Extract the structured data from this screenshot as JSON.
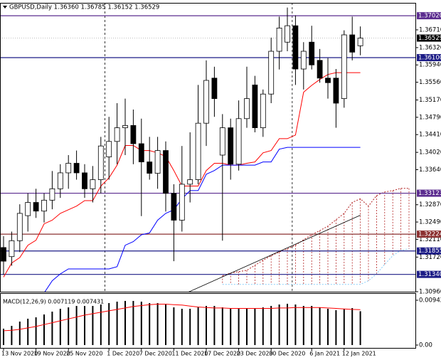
{
  "chart_data": {
    "type": "candlestick",
    "title": "GBPUSD,Daily  1.36360 1.36785 1.36152 1.36529",
    "categories": [
      "13 Nov 2020",
      null,
      null,
      null,
      "19 Nov 2020",
      null,
      null,
      null,
      "25 Nov 2020",
      null,
      null,
      null,
      null,
      "1 Dec 2020",
      null,
      null,
      null,
      "7 Dec 2020",
      null,
      null,
      null,
      "11 Dec 2020",
      null,
      null,
      null,
      "17 Dec 2020",
      null,
      null,
      null,
      "23 Dec 2020",
      null,
      null,
      null,
      "30 Dec 2020",
      null,
      null,
      null,
      null,
      "6 Jan 2021",
      null,
      null,
      null,
      "12 Jan 2021",
      null,
      null
    ],
    "open": [
      1.3193,
      1.3173,
      1.3208,
      1.3263,
      1.3292,
      1.3273,
      1.3297,
      1.3322,
      1.3357,
      1.3378,
      1.3357,
      1.3322,
      1.3342,
      1.3392,
      1.3426,
      1.3456,
      1.3461,
      1.3421,
      1.3381,
      1.3356,
      1.3406,
      1.3312,
      1.3253,
      1.3332,
      1.3342,
      1.3466,
      1.3565,
      1.3396,
      1.3456,
      1.3376,
      1.3476,
      1.355,
      1.3456,
      1.353,
      1.3624,
      1.3644,
      1.368,
      1.3585,
      1.3644,
      1.3604,
      1.3565,
      1.3565,
      1.352,
      1.366,
      1.3636
    ],
    "high": [
      1.3218,
      1.3228,
      1.3288,
      1.3312,
      1.3322,
      1.3312,
      1.3361,
      1.3376,
      1.3396,
      1.3406,
      1.3376,
      1.3372,
      1.3436,
      1.348,
      1.351,
      1.352,
      1.3496,
      1.3476,
      1.3436,
      1.3436,
      1.3426,
      1.3332,
      1.3416,
      1.3446,
      1.355,
      1.3604,
      1.359,
      1.3486,
      1.3476,
      1.3516,
      1.359,
      1.357,
      1.354,
      1.3654,
      1.37,
      1.372,
      1.3703,
      1.3644,
      1.368,
      1.3629,
      1.3609,
      1.3585,
      1.367,
      1.37,
      1.36785
    ],
    "low": [
      1.3133,
      1.3153,
      1.3183,
      1.3228,
      1.3258,
      1.3248,
      1.3277,
      1.3302,
      1.3322,
      1.3342,
      1.3302,
      1.3292,
      1.3312,
      1.3342,
      1.3376,
      1.3396,
      1.3376,
      1.3262,
      1.3342,
      1.3322,
      1.3272,
      1.3163,
      1.3228,
      1.3292,
      1.3332,
      1.3416,
      1.348,
      1.3208,
      1.3342,
      1.3362,
      1.3456,
      1.3446,
      1.3436,
      1.351,
      1.3584,
      1.3624,
      1.355,
      1.354,
      1.3584,
      1.3555,
      1.352,
      1.3456,
      1.35,
      1.3604,
      1.36152
    ],
    "close": [
      1.3163,
      1.3208,
      1.3268,
      1.3292,
      1.3273,
      1.3297,
      1.3322,
      1.3357,
      1.3378,
      1.3357,
      1.3322,
      1.3342,
      1.3416,
      1.3426,
      1.3456,
      1.3461,
      1.3421,
      1.3381,
      1.3356,
      1.3406,
      1.3312,
      1.3253,
      1.3332,
      1.3342,
      1.3466,
      1.356,
      1.352,
      1.3456,
      1.3376,
      1.3476,
      1.352,
      1.3456,
      1.353,
      1.3624,
      1.3675,
      1.368,
      1.3585,
      1.3624,
      1.3594,
      1.3565,
      1.3555,
      1.351,
      1.366,
      1.3622,
      1.36529
    ],
    "lines": [
      {
        "color": "#ff0000",
        "values": [
          1.3128,
          1.3159,
          1.3171,
          1.3198,
          1.3209,
          1.3245,
          1.3253,
          1.3268,
          1.3276,
          1.3284,
          1.3296,
          1.3296,
          1.3328,
          1.3346,
          1.3374,
          1.3417,
          1.3417,
          1.3406,
          1.3406,
          1.3401,
          1.3393,
          1.3362,
          1.3328,
          1.3328,
          1.3328,
          1.3362,
          1.3378,
          1.3378,
          1.3374,
          1.3374,
          1.3378,
          1.3381,
          1.3401,
          1.3406,
          1.3432,
          1.3432,
          1.344,
          1.3534,
          1.3549,
          1.3562,
          1.3573,
          1.3577,
          1.3577,
          1.3577,
          1.3577
        ]
      },
      {
        "color": "#0000ff",
        "values": [
          null,
          null,
          null,
          null,
          null,
          1.3093,
          1.312,
          1.3135,
          1.3146,
          1.3146,
          1.3146,
          1.3146,
          1.3146,
          1.3146,
          1.3151,
          1.3198,
          1.3206,
          1.3221,
          1.3225,
          1.3253,
          1.3268,
          1.3276,
          1.33,
          1.3318,
          1.3318,
          1.3354,
          1.3362,
          1.3374,
          1.3374,
          1.3374,
          1.3374,
          1.3374,
          1.3381,
          1.3381,
          1.3409,
          1.3413,
          1.3413,
          1.3413,
          1.3413,
          1.3413,
          1.3413,
          1.3413,
          1.3413,
          1.3413,
          1.3413
        ]
      }
    ],
    "cloud": {
      "color": "#b22222",
      "color_b": "#87cefa",
      "span_a": [
        null,
        null,
        null,
        null,
        null,
        null,
        null,
        null,
        null,
        null,
        null,
        null,
        null,
        null,
        null,
        null,
        null,
        null,
        null,
        null,
        null,
        null,
        null,
        null,
        null,
        null,
        null,
        1.3131,
        1.3137,
        1.314,
        1.3143,
        1.3154,
        1.3165,
        1.3175,
        1.3183,
        1.319,
        1.3198,
        1.321,
        1.3221,
        1.323,
        1.324,
        1.3254,
        1.3268,
        1.3292,
        1.33,
        1.3284,
        1.3307,
        1.3315,
        1.3318,
        1.3323,
        1.3323
      ],
      "span_b": [
        null,
        null,
        null,
        null,
        null,
        null,
        null,
        null,
        null,
        null,
        null,
        null,
        null,
        null,
        null,
        null,
        null,
        null,
        null,
        null,
        null,
        null,
        null,
        null,
        null,
        null,
        null,
        1.3112,
        1.3112,
        1.3112,
        1.3112,
        1.3112,
        1.3112,
        1.3112,
        1.3112,
        1.3112,
        1.3112,
        1.3112,
        1.3112,
        1.3112,
        1.3112,
        1.3112,
        1.3112,
        1.3112,
        1.3112,
        1.312,
        1.3135,
        1.3156,
        1.3175,
        1.3187,
        1.319
      ]
    },
    "trendline": {
      "color": "#000000",
      "x": [
        22.4,
        44
      ],
      "y": [
        1.3092,
        1.3264
      ]
    },
    "ylim": [
      1.3096,
      1.37303
    ],
    "yticks": [
      {
        "value": 1.3671,
        "label": "1.36710"
      },
      {
        "value": 1.3632,
        "label": "1.36320"
      },
      {
        "value": 1.3594,
        "label": "1.35940"
      },
      {
        "value": 1.3556,
        "label": "1.35560"
      },
      {
        "value": 1.3517,
        "label": "1.35170"
      },
      {
        "value": 1.3479,
        "label": "1.34790"
      },
      {
        "value": 1.3441,
        "label": "1.34410"
      },
      {
        "value": 1.3402,
        "label": "1.34020"
      },
      {
        "value": 1.3364,
        "label": "1.33640"
      },
      {
        "value": 1.3287,
        "label": "1.32870"
      },
      {
        "value": 1.3249,
        "label": "1.32490"
      },
      {
        "value": 1.3211,
        "label": "1.32110"
      },
      {
        "value": 1.3172,
        "label": "1.31720"
      },
      {
        "value": 1.3096,
        "label": "1.30960"
      }
    ],
    "levels": [
      {
        "value": 1.3702,
        "label": "1.37020",
        "color": "#5b2c8f"
      },
      {
        "value": 1.361,
        "label": "1.36100",
        "color": "#1c1c86"
      },
      {
        "value": 1.33123,
        "label": "1.33123",
        "color": "#5b2c8f"
      },
      {
        "value": 1.32224,
        "label": "1.32224",
        "color": "#8b3030"
      },
      {
        "value": 1.31855,
        "label": "1.31855",
        "color": "#1c1c86"
      },
      {
        "value": 1.3134,
        "label": "1.31340",
        "color": "#1c1c86"
      }
    ],
    "price_label": {
      "value": 1.36529,
      "label": "1.36529",
      "color": "#000000"
    },
    "macd": {
      "label": "MACD(12,26,9) 0.007119 0.007431",
      "color": "#000000",
      "signal_color": "#ff0000",
      "values": [
        0.00344,
        0.00404,
        0.00494,
        0.00554,
        0.00583,
        0.00643,
        0.00703,
        0.00763,
        0.00793,
        0.00823,
        0.00823,
        0.00823,
        0.00853,
        0.00883,
        0.00913,
        0.00928,
        0.00928,
        0.00913,
        0.00883,
        0.00883,
        0.00853,
        0.00793,
        0.00763,
        0.00763,
        0.00793,
        0.00823,
        0.00823,
        0.00793,
        0.00763,
        0.00763,
        0.00778,
        0.00778,
        0.00793,
        0.00823,
        0.00853,
        0.00868,
        0.00853,
        0.00823,
        0.00823,
        0.00793,
        0.00763,
        0.00733,
        0.00763,
        0.00778,
        0.007119
      ],
      "signal": [
        0.003,
        0.0031,
        0.0033,
        0.0036,
        0.0039,
        0.0043,
        0.0047,
        0.0051,
        0.0055,
        0.0059,
        0.0063,
        0.0066,
        0.0069,
        0.0072,
        0.0075,
        0.0078,
        0.0081,
        0.0083,
        0.0085,
        0.0086,
        0.0086,
        0.0085,
        0.0084,
        0.0082,
        0.008,
        0.0079,
        0.0078,
        0.0078,
        0.0077,
        0.0077,
        0.0077,
        0.0077,
        0.0077,
        0.0077,
        0.0078,
        0.0078,
        0.0079,
        0.0079,
        0.0079,
        0.0079,
        0.0078,
        0.0077,
        0.0076,
        0.0075,
        0.007431
      ],
      "ylim": [
        -0.00075,
        0.01092
      ],
      "yticks": [
        0.009426,
        {
          "value": 0,
          "label": "0.00"
        }
      ]
    }
  }
}
